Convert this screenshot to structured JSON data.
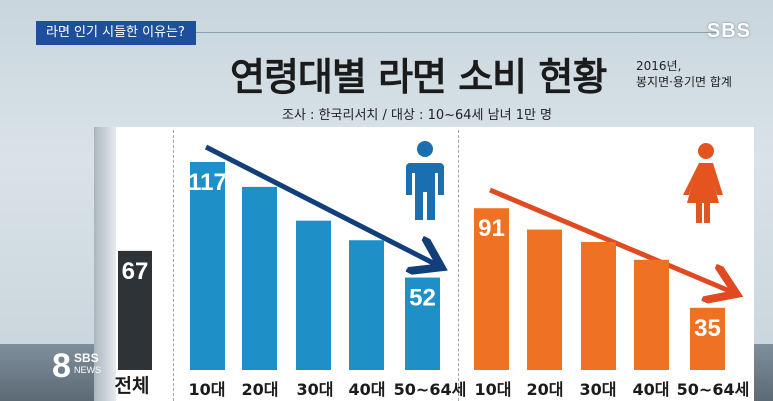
{
  "header": {
    "tag": "라면 인기 시들한 이유는?",
    "channel": "SBS"
  },
  "chart_data": {
    "type": "bar",
    "title": "연령대별 라면 소비 현황",
    "note_line1": "2016년,",
    "note_line2": "봉지면·용기면 합계",
    "source": "조사 : 한국리서치  /  대상 : 10~64세 남녀 1만 명",
    "total": {
      "label": "전체",
      "value": 67,
      "color": "#2e3338"
    },
    "categories": [
      "10대",
      "20대",
      "30대",
      "40대",
      "50~64세"
    ],
    "ylim": [
      0,
      130
    ],
    "series": [
      {
        "values": [
          117,
          103,
          84,
          73,
          52
        ],
        "color": "#1f8fc8",
        "labels": [
          "117",
          "",
          "",
          "",
          "52"
        ]
      },
      {
        "values": [
          91,
          79,
          72,
          62,
          35
        ],
        "color": "#ef7224",
        "labels": [
          "91",
          "",
          "",
          "",
          "35"
        ]
      }
    ],
    "male_icon_color": "#1a6fb0",
    "female_icon_color": "#e4541f"
  },
  "logo": {
    "number": "8",
    "brand": "SBS",
    "sub": "NEWS"
  }
}
